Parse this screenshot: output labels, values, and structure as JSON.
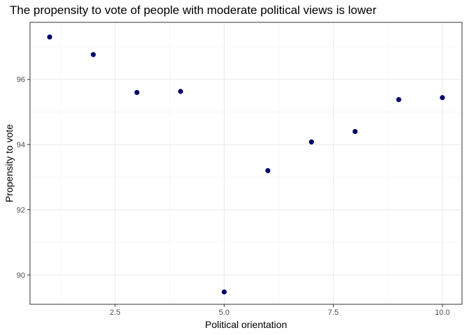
{
  "chart_data": {
    "type": "scatter",
    "title": "The propensity to vote of people with moderate political views is lower",
    "xlabel": "Political orientation",
    "ylabel": "Propensity to vote",
    "xlim": [
      0.55,
      10.45
    ],
    "ylim": [
      89.1,
      97.75
    ],
    "x_ticks": [
      2.5,
      5.0,
      7.5,
      10.0
    ],
    "x_tick_labels": [
      "2.5",
      "5.0",
      "7.5",
      "10.0"
    ],
    "y_ticks": [
      90,
      92,
      94,
      96
    ],
    "y_tick_labels": [
      "90",
      "92",
      "94",
      "96"
    ],
    "grid": true,
    "point_color": "#000066",
    "points": [
      {
        "x": 1,
        "y": 97.3
      },
      {
        "x": 2,
        "y": 96.76
      },
      {
        "x": 3,
        "y": 95.6
      },
      {
        "x": 4,
        "y": 95.63
      },
      {
        "x": 5,
        "y": 89.48
      },
      {
        "x": 6,
        "y": 93.2
      },
      {
        "x": 7,
        "y": 94.08
      },
      {
        "x": 8,
        "y": 94.4
      },
      {
        "x": 9,
        "y": 95.38
      },
      {
        "x": 10,
        "y": 95.44
      }
    ]
  }
}
